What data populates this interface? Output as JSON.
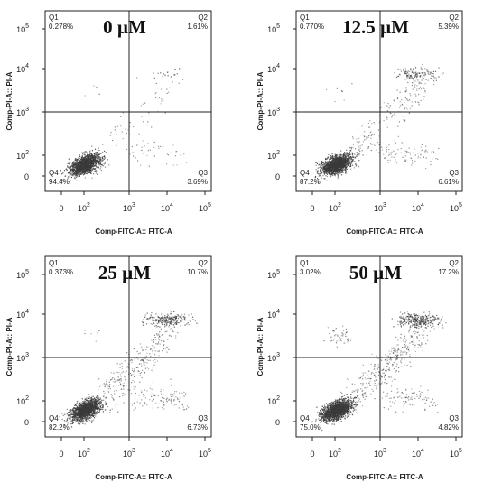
{
  "chart_data": [
    {
      "type": "scatter",
      "title": "0 µM",
      "xlabel": "Comp-FITC-A:: FITC-A",
      "ylabel": "Comp-PI-A:: PI-A",
      "x_ticks": [
        "0",
        "10^2",
        "10^3",
        "10^4",
        "10^5"
      ],
      "y_ticks": [
        "0",
        "10^2",
        "10^3",
        "10^4",
        "10^5"
      ],
      "x_scale": "biexponential",
      "y_scale": "biexponential",
      "gate": {
        "x": 1000,
        "y": 1000
      },
      "quadrants": [
        {
          "name": "Q1",
          "value": "0.278%"
        },
        {
          "name": "Q2",
          "value": "1.61%"
        },
        {
          "name": "Q3",
          "value": "3.69%"
        },
        {
          "name": "Q4",
          "value": "94.4%"
        }
      ]
    },
    {
      "type": "scatter",
      "title": "12.5 µM",
      "xlabel": "Comp-FITC-A:: FITC-A",
      "ylabel": "Comp-PI-A:: PI-A",
      "x_ticks": [
        "0",
        "10^2",
        "10^3",
        "10^4",
        "10^5"
      ],
      "y_ticks": [
        "0",
        "10^2",
        "10^3",
        "10^4",
        "10^5"
      ],
      "x_scale": "biexponential",
      "y_scale": "biexponential",
      "gate": {
        "x": 1000,
        "y": 1000
      },
      "quadrants": [
        {
          "name": "Q1",
          "value": "0.770%"
        },
        {
          "name": "Q2",
          "value": "5.39%"
        },
        {
          "name": "Q3",
          "value": "6.61%"
        },
        {
          "name": "Q4",
          "value": "87.2%"
        }
      ]
    },
    {
      "type": "scatter",
      "title": "25 µM",
      "xlabel": "Comp-FITC-A:: FITC-A",
      "ylabel": "Comp-PI-A:: PI-A",
      "x_ticks": [
        "0",
        "10^2",
        "10^3",
        "10^4",
        "10^5"
      ],
      "y_ticks": [
        "0",
        "10^2",
        "10^3",
        "10^4",
        "10^5"
      ],
      "x_scale": "biexponential",
      "y_scale": "biexponential",
      "gate": {
        "x": 1000,
        "y": 1000
      },
      "quadrants": [
        {
          "name": "Q1",
          "value": "0.373%"
        },
        {
          "name": "Q2",
          "value": "10.7%"
        },
        {
          "name": "Q3",
          "value": "6.73%"
        },
        {
          "name": "Q4",
          "value": "82.2%"
        }
      ]
    },
    {
      "type": "scatter",
      "title": "50 µM",
      "xlabel": "Comp-FITC-A:: FITC-A",
      "ylabel": "Comp-PI-A:: PI-A",
      "x_ticks": [
        "0",
        "10^2",
        "10^3",
        "10^4",
        "10^5"
      ],
      "y_ticks": [
        "0",
        "10^2",
        "10^3",
        "10^4",
        "10^5"
      ],
      "x_scale": "biexponential",
      "y_scale": "biexponential",
      "gate": {
        "x": 1000,
        "y": 1000
      },
      "quadrants": [
        {
          "name": "Q1",
          "value": "3.02%"
        },
        {
          "name": "Q2",
          "value": "17.2%"
        },
        {
          "name": "Q3",
          "value": "4.82%"
        },
        {
          "name": "Q4",
          "value": "75.0%"
        }
      ]
    }
  ]
}
